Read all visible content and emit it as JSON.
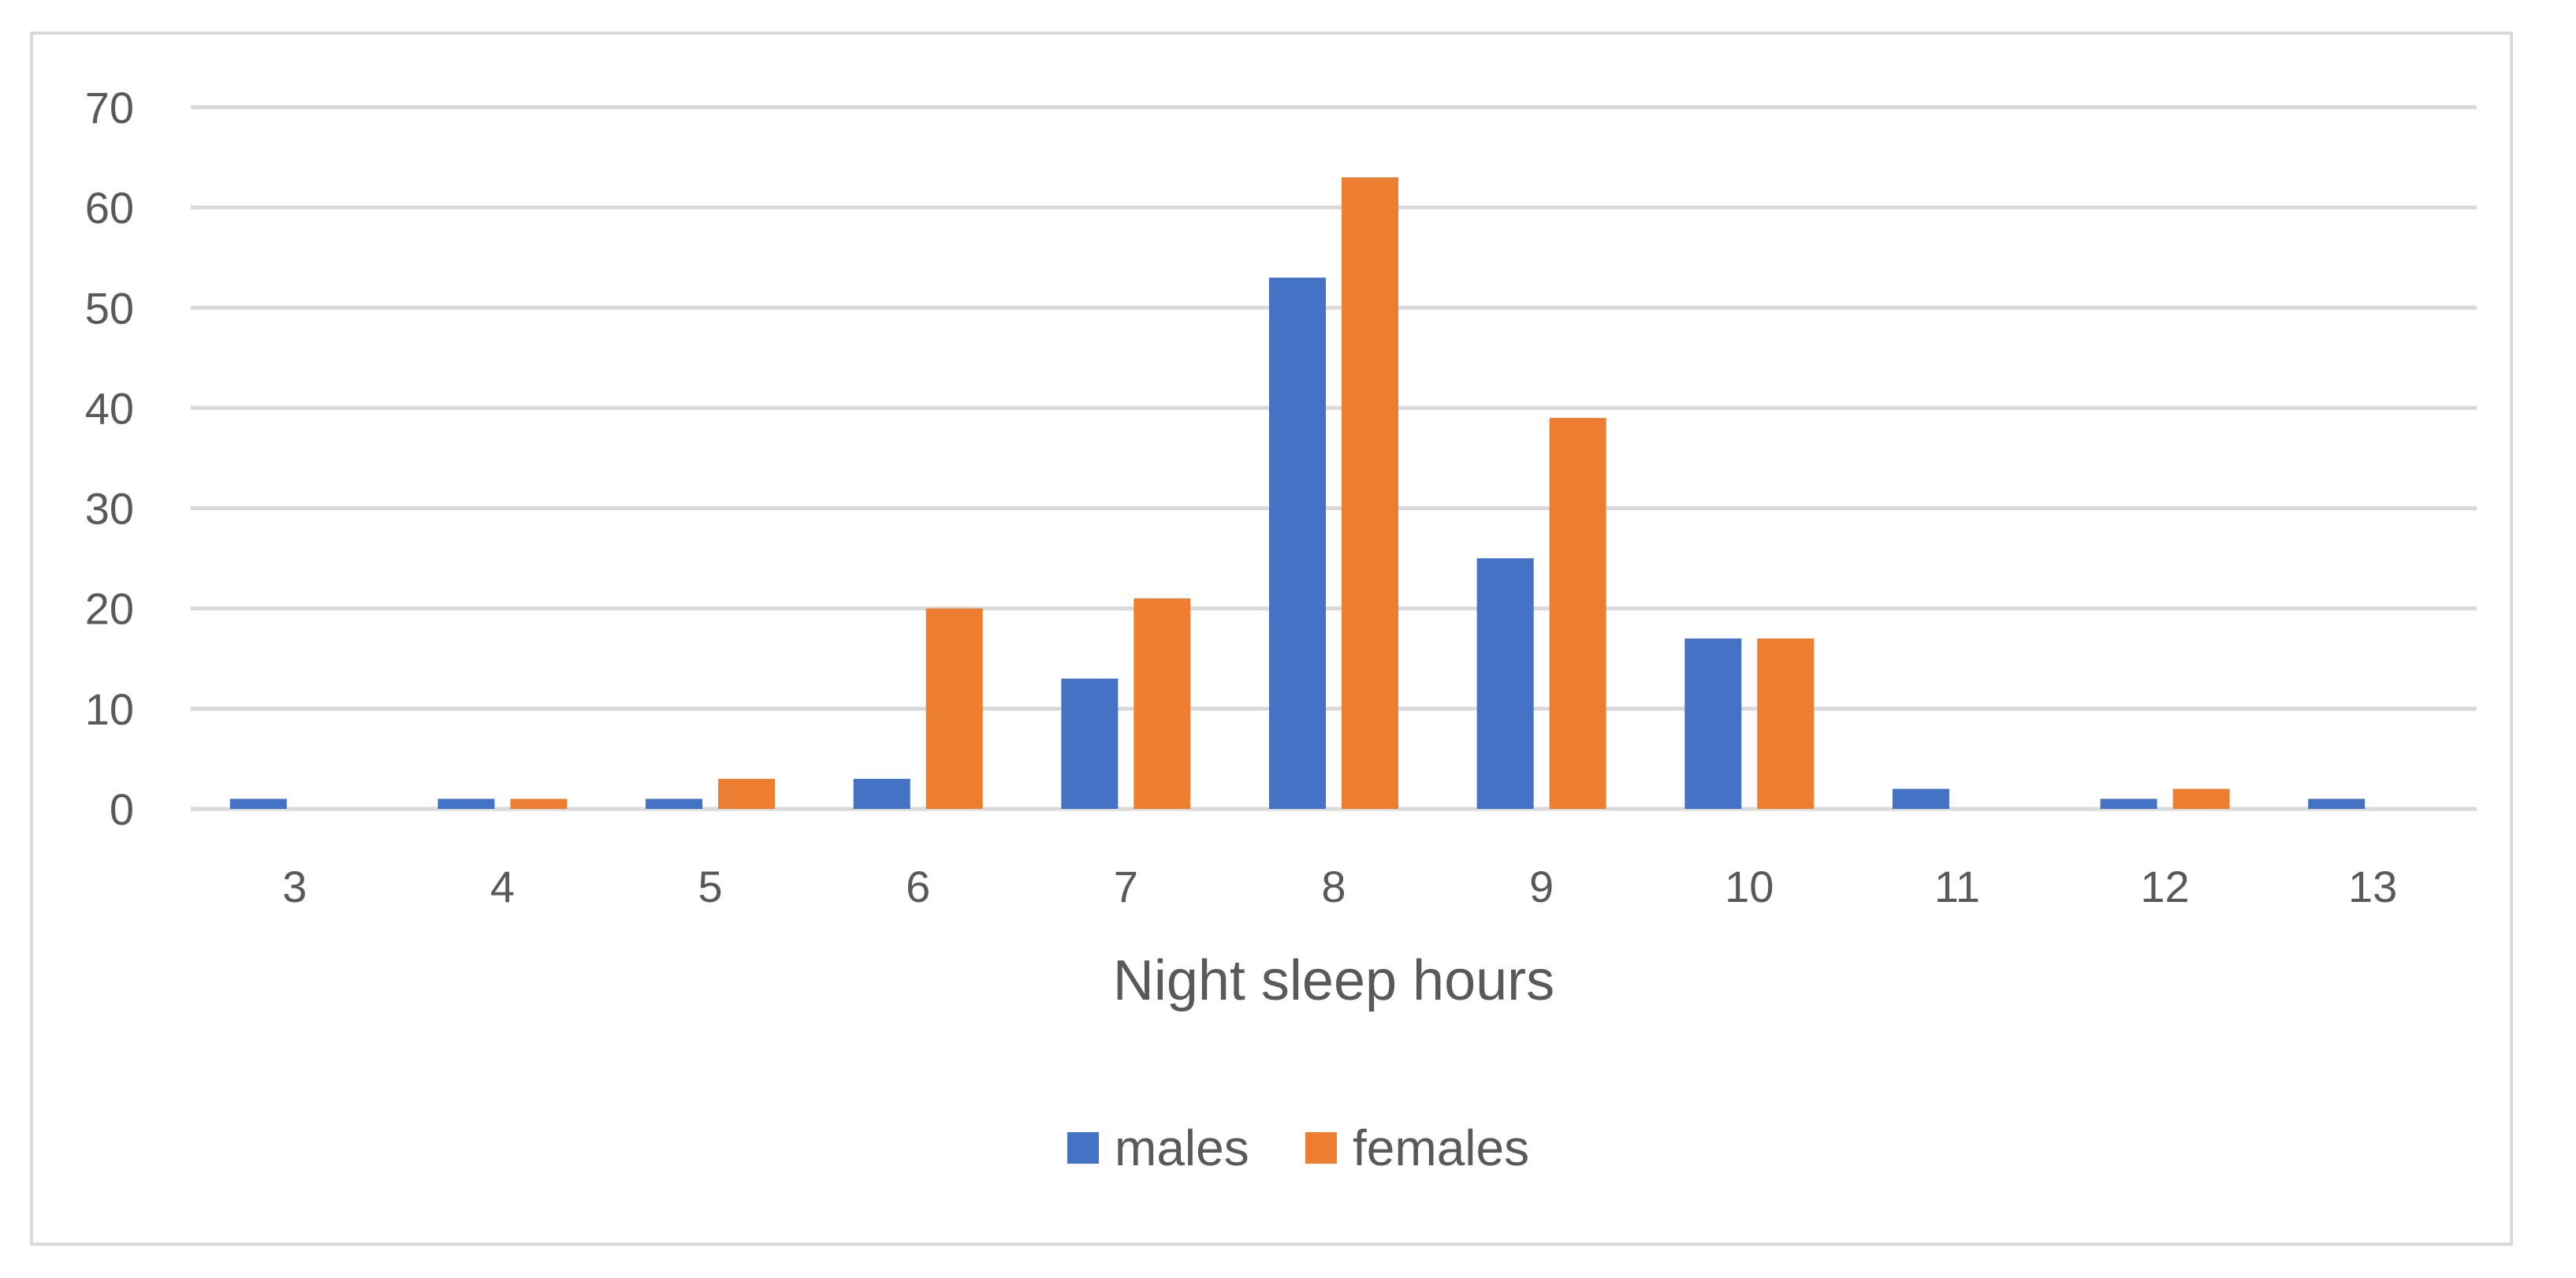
{
  "chart_data": {
    "type": "bar",
    "xlabel": "Night sleep hours",
    "ylabel": "",
    "categories": [
      "3",
      "4",
      "5",
      "6",
      "7",
      "8",
      "9",
      "10",
      "11",
      "12",
      "13"
    ],
    "series": [
      {
        "name": "males",
        "color": "#4472c4",
        "values": [
          1,
          1,
          1,
          3,
          13,
          53,
          25,
          17,
          2,
          1,
          1
        ]
      },
      {
        "name": "females",
        "color": "#ed7d31",
        "values": [
          0,
          1,
          3,
          20,
          21,
          63,
          39,
          17,
          0,
          2,
          0
        ]
      }
    ],
    "ylim": [
      0,
      70
    ],
    "yticks": [
      0,
      10,
      20,
      30,
      40,
      50,
      60,
      70
    ],
    "grid": true,
    "legend_position": "bottom"
  },
  "colors": {
    "gridline": "#d9d9d9",
    "text": "#595959",
    "border": "#d9d9d9"
  }
}
